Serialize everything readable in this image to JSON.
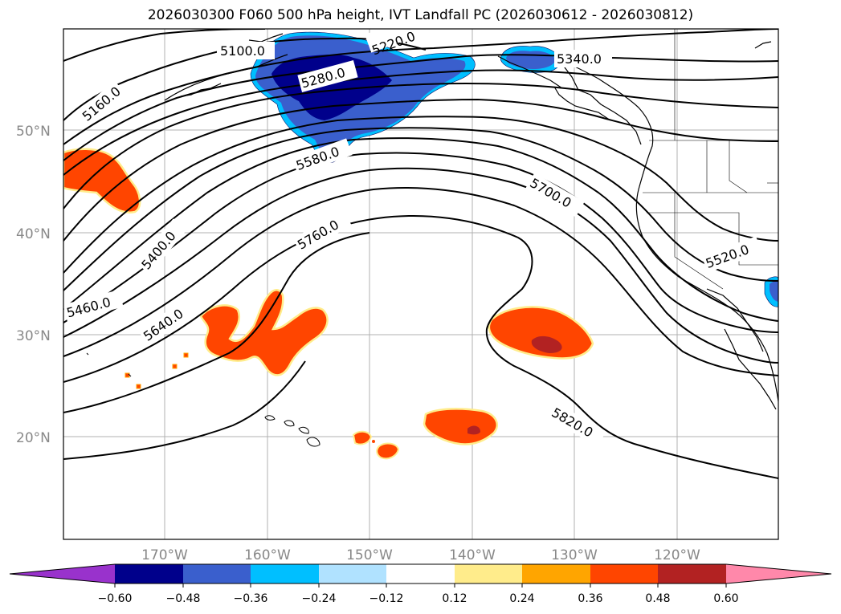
{
  "title": "2026030300 F060 500 hPa height, IVT Landfall PC (2026030612 - 2026030812)",
  "lat_labels": [
    "50°N",
    "40°N",
    "30°N",
    "20°N"
  ],
  "lon_labels": [
    "170°W",
    "160°W",
    "150°W",
    "140°W",
    "130°W",
    "120°W"
  ],
  "contour_labels": [
    "5100.0",
    "5220.0",
    "5340.0",
    "5160.0",
    "5280.0",
    "5580.0",
    "5700.0",
    "5400.0",
    "5760.0",
    "5520.0",
    "5460.0",
    "5640.0",
    "5820.0"
  ],
  "colorbar": {
    "ticks": [
      "−0.60",
      "−0.48",
      "−0.36",
      "−0.24",
      "−0.12",
      "0.12",
      "0.24",
      "0.36",
      "0.48",
      "0.60"
    ],
    "colors": [
      "#9932cc",
      "#00008b",
      "#3a5fcd",
      "#00bfff",
      "#b0e2ff",
      "#ffffff",
      "#ffec8b",
      "#ffa500",
      "#ff4500",
      "#b22222",
      "#ff88aa"
    ]
  }
}
